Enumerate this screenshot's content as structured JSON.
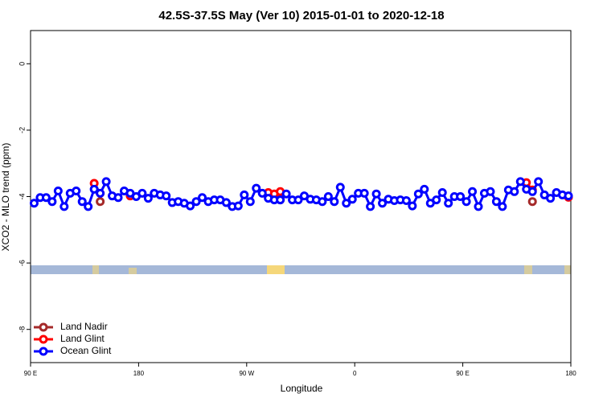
{
  "chart_data": {
    "type": "line",
    "title": "42.5S-37.5S May (Ver 10)   2015-01-01 to 2020-12-18",
    "x_label": "Longitude",
    "y_label": "XCO2 - MLO trend (ppm)",
    "xlim": [
      90,
      540
    ],
    "xticks": [
      {
        "value": 90,
        "label": "90 E"
      },
      {
        "value": 180,
        "label": "180"
      },
      {
        "value": 270,
        "label": "90 W"
      },
      {
        "value": 360,
        "label": "0"
      },
      {
        "value": 450,
        "label": "90 E"
      },
      {
        "value": 540,
        "label": "180"
      }
    ],
    "ylim": [
      -9,
      1
    ],
    "yticks": [
      0,
      -2,
      -4,
      -6,
      -8
    ],
    "legend": "bottom-left",
    "x": [
      93,
      98,
      103,
      108,
      113,
      118,
      123,
      128,
      133,
      138,
      143,
      148,
      153,
      158,
      163,
      168,
      173,
      178,
      183,
      188,
      193,
      198,
      203,
      208,
      213,
      218,
      223,
      228,
      233,
      238,
      243,
      248,
      253,
      258,
      263,
      268,
      273,
      278,
      283,
      288,
      293,
      298,
      303,
      308,
      313,
      318,
      323,
      328,
      333,
      338,
      343,
      348,
      353,
      358,
      363,
      368,
      373,
      378,
      383,
      388,
      393,
      398,
      403,
      408,
      413,
      418,
      423,
      428,
      433,
      438,
      443,
      448,
      453,
      458,
      463,
      468,
      473,
      478,
      483,
      488,
      493,
      498,
      503,
      508,
      513,
      518,
      523,
      528,
      533,
      538
    ],
    "series": [
      {
        "name": "Land Nadir",
        "color": "#a52a2a",
        "values": [
          null,
          null,
          null,
          null,
          null,
          null,
          null,
          null,
          null,
          null,
          null,
          -4.15,
          null,
          null,
          null,
          null,
          null,
          null,
          null,
          null,
          null,
          null,
          null,
          null,
          null,
          null,
          null,
          null,
          null,
          null,
          null,
          null,
          null,
          null,
          null,
          null,
          null,
          null,
          null,
          null,
          null,
          -4.1,
          null,
          null,
          null,
          null,
          null,
          null,
          null,
          null,
          null,
          null,
          null,
          null,
          null,
          null,
          null,
          null,
          null,
          null,
          null,
          null,
          null,
          null,
          null,
          null,
          null,
          null,
          null,
          null,
          null,
          null,
          null,
          null,
          null,
          null,
          null,
          null,
          null,
          null,
          null,
          null,
          null,
          -4.15,
          null,
          null,
          null,
          null,
          null,
          null
        ]
      },
      {
        "name": "Land Glint",
        "color": "#ff0000",
        "values": [
          null,
          null,
          null,
          null,
          null,
          null,
          null,
          null,
          null,
          null,
          -3.6,
          -3.9,
          null,
          null,
          null,
          null,
          -3.98,
          null,
          null,
          null,
          null,
          null,
          null,
          null,
          null,
          null,
          null,
          null,
          null,
          null,
          null,
          null,
          null,
          null,
          null,
          null,
          null,
          null,
          null,
          -3.88,
          -3.92,
          -3.85,
          null,
          null,
          null,
          null,
          null,
          null,
          null,
          null,
          null,
          null,
          null,
          null,
          null,
          null,
          null,
          null,
          null,
          null,
          null,
          null,
          null,
          null,
          null,
          null,
          null,
          null,
          null,
          null,
          null,
          null,
          null,
          null,
          null,
          null,
          null,
          null,
          null,
          null,
          null,
          null,
          -3.58,
          -3.8,
          null,
          null,
          null,
          null,
          null,
          -4.02
        ]
      },
      {
        "name": "Ocean Glint",
        "color": "#0000ff",
        "values": [
          -4.2,
          -4.03,
          -4.03,
          -4.15,
          -3.83,
          -4.3,
          -3.9,
          -3.83,
          -4.15,
          -4.3,
          -3.78,
          -3.9,
          -3.55,
          -3.98,
          -4.03,
          -3.83,
          -3.9,
          -4.0,
          -3.9,
          -4.05,
          -3.9,
          -3.95,
          -3.98,
          -4.18,
          -4.15,
          -4.2,
          -4.28,
          -4.15,
          -4.03,
          -4.15,
          -4.1,
          -4.1,
          -4.18,
          -4.3,
          -4.28,
          -3.95,
          -4.15,
          -3.75,
          -3.9,
          -4.05,
          -4.1,
          -4.1,
          -3.92,
          -4.1,
          -4.1,
          -3.98,
          -4.08,
          -4.1,
          -4.15,
          -4.0,
          -4.15,
          -3.72,
          -4.2,
          -4.08,
          -3.9,
          -3.9,
          -4.3,
          -3.92,
          -4.2,
          -4.08,
          -4.12,
          -4.1,
          -4.12,
          -4.28,
          -3.92,
          -3.78,
          -4.2,
          -4.1,
          -3.88,
          -4.2,
          -4.0,
          -4.0,
          -4.15,
          -3.85,
          -4.3,
          -3.9,
          -3.85,
          -4.15,
          -4.3,
          -3.8,
          -3.85,
          -3.55,
          -3.78,
          -3.85,
          -3.55,
          -3.95,
          -4.05,
          -3.88,
          -3.95,
          -3.98
        ]
      }
    ]
  }
}
